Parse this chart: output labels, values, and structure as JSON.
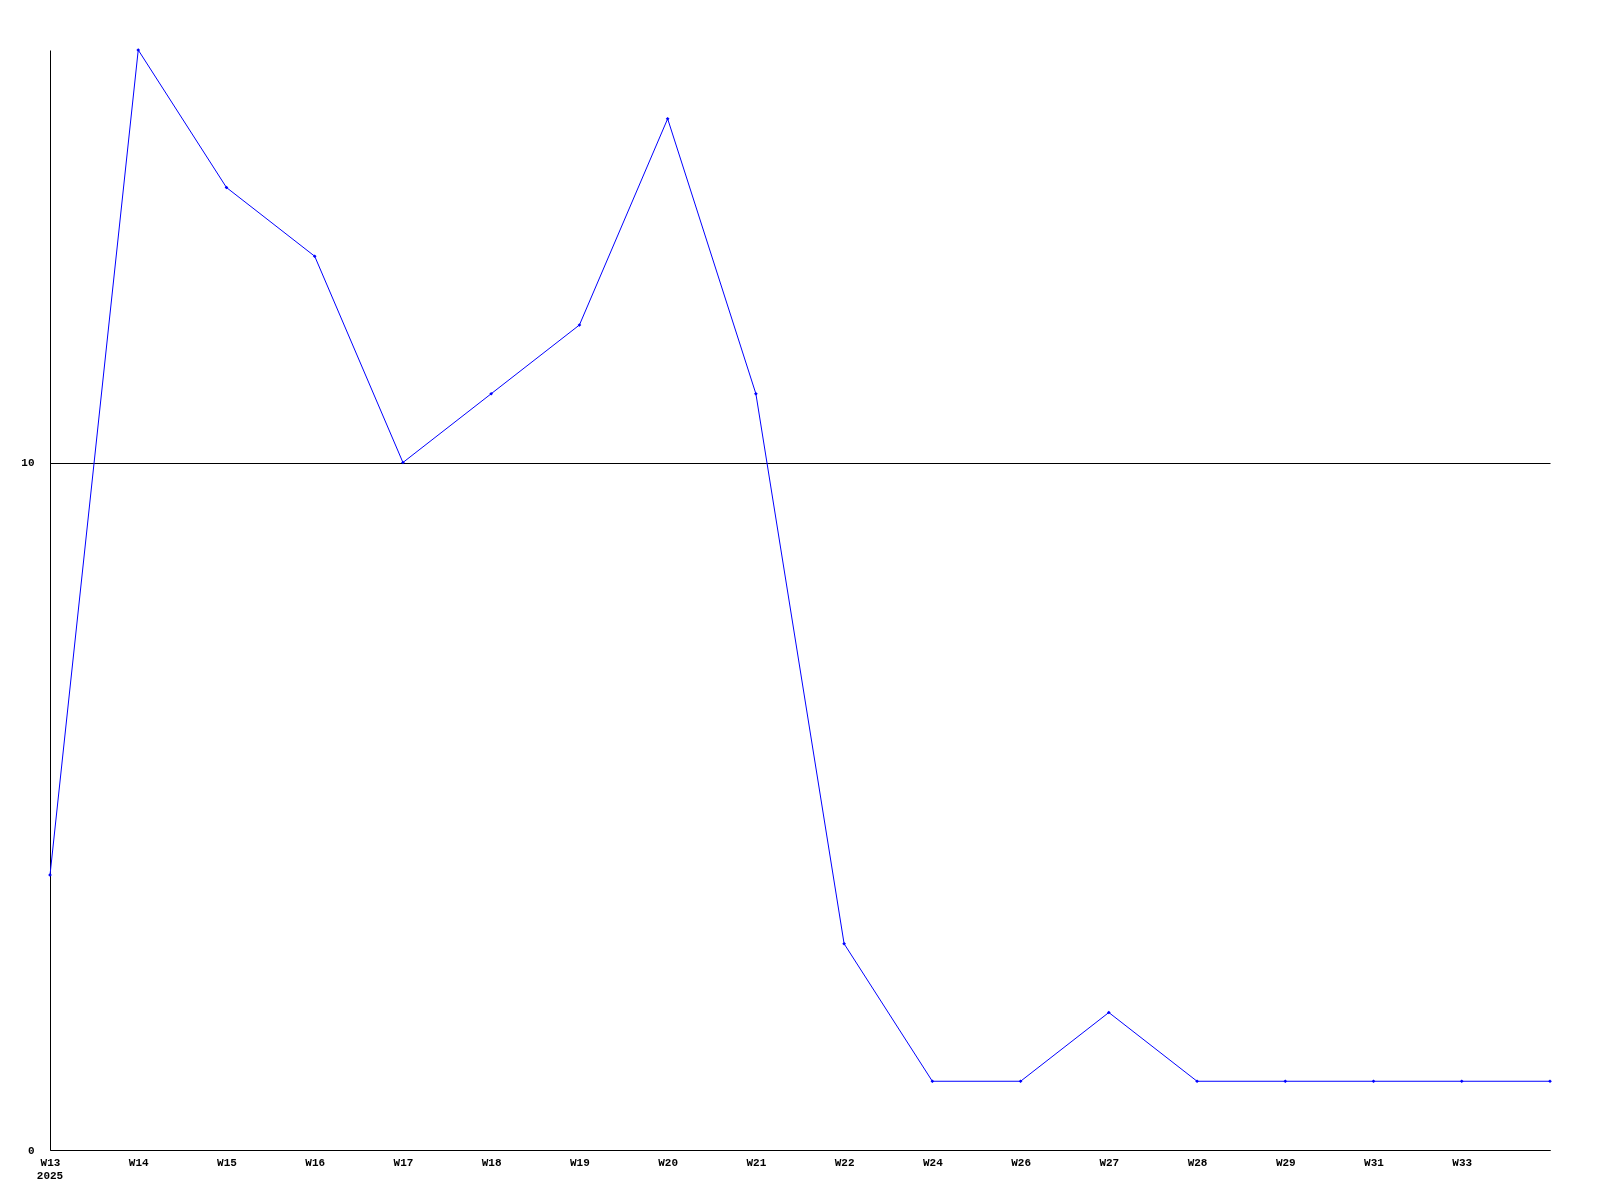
{
  "chart_data": {
    "type": "line",
    "categories": [
      "W13",
      "W14",
      "W15",
      "W16",
      "W17",
      "W18",
      "W19",
      "W20",
      "W21",
      "W22",
      "W24",
      "W26",
      "W27",
      "W28",
      "W29",
      "W31",
      "W33",
      null
    ],
    "series": [
      {
        "color": "#0000ff",
        "values": [
          4,
          16,
          14,
          13,
          10,
          11,
          12,
          15,
          11,
          3,
          1,
          1,
          2,
          1,
          1,
          1,
          1,
          1
        ]
      }
    ],
    "ylim": [
      0,
      16
    ],
    "yticks": [
      0,
      10
    ],
    "grid": "y",
    "marker": "diamond",
    "line_style": "solid",
    "annotations": [
      "2025"
    ]
  }
}
